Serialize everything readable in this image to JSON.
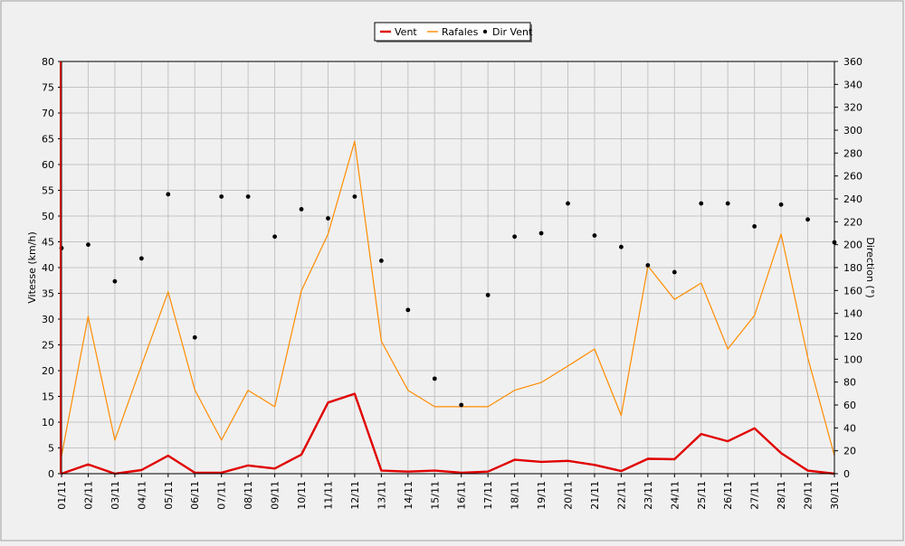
{
  "chart_data": {
    "type": "line",
    "x": [
      "01/11",
      "02/11",
      "03/11",
      "04/11",
      "05/11",
      "06/11",
      "07/11",
      "08/11",
      "09/11",
      "10/11",
      "11/11",
      "12/11",
      "13/11",
      "14/11",
      "15/11",
      "16/11",
      "17/11",
      "18/11",
      "19/11",
      "20/11",
      "21/11",
      "22/11",
      "23/11",
      "24/11",
      "25/11",
      "26/11",
      "27/11",
      "28/11",
      "29/11",
      "30/11"
    ],
    "series": [
      {
        "name": "Vent",
        "axis": "left",
        "color": "#e00000",
        "style": "line",
        "values": [
          0,
          1.8,
          0,
          0.7,
          3.5,
          0.2,
          0.2,
          1.6,
          1,
          3.7,
          13.8,
          15.5,
          0.6,
          0.4,
          0.6,
          0.2,
          0.4,
          2.7,
          2.3,
          2.5,
          1.7,
          0.5,
          2.9,
          2.8,
          7.7,
          6.3,
          8.8,
          4,
          0.6,
          0
        ]
      },
      {
        "name": "Rafales",
        "axis": "left",
        "color": "#ff8c00",
        "style": "line",
        "values": [
          3.5,
          30.5,
          6.5,
          21,
          35.3,
          16.3,
          6.5,
          16.2,
          13,
          35.5,
          46.5,
          64.5,
          25.7,
          16.2,
          13,
          13,
          13,
          16.2,
          17.7,
          20.9,
          24.2,
          11.3,
          40.3,
          33.8,
          37,
          24.2,
          30.7,
          46.5,
          22.5,
          3.5
        ]
      },
      {
        "name": "Dir Vent",
        "axis": "right",
        "color": "#000000",
        "style": "points",
        "values": [
          197,
          200,
          168,
          188,
          244,
          119,
          242,
          242,
          207,
          231,
          223,
          242,
          186,
          143,
          83,
          60,
          156,
          207,
          210,
          236,
          208,
          198,
          182,
          176,
          236,
          236,
          216,
          235,
          222,
          202
        ]
      }
    ],
    "left_axis": {
      "label": "Vitesse (km/h)",
      "min": 0,
      "max": 80,
      "step": 5
    },
    "right_axis": {
      "label": "Direction (°)",
      "min": 0,
      "max": 360,
      "step": 20
    },
    "grid": true,
    "legend": "top-center"
  }
}
